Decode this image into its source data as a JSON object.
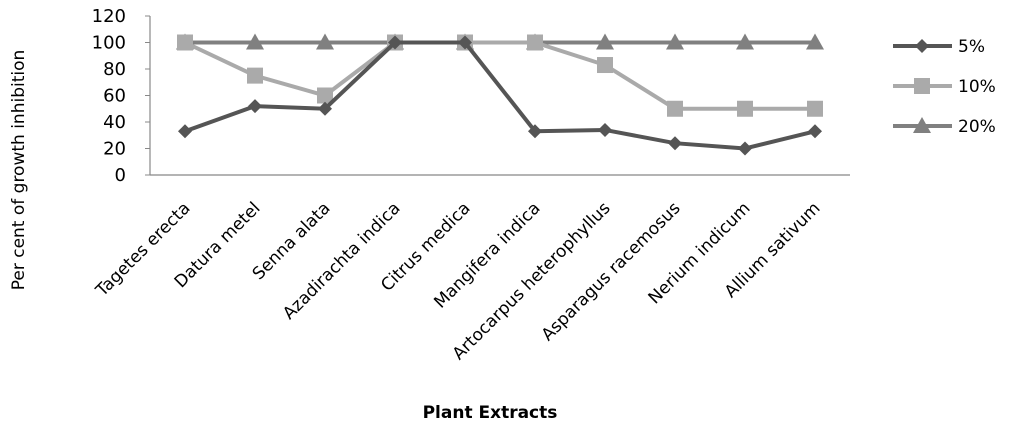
{
  "chart_data": {
    "type": "line",
    "xlabel": "Plant Extracts",
    "ylabel": "Per cent of growth inhibition",
    "ylim": [
      0,
      120
    ],
    "yticks": [
      0,
      20,
      40,
      60,
      80,
      100,
      120
    ],
    "grid": false,
    "legend_position": "right",
    "categories": [
      "Tagetes erecta",
      "Datura metel",
      "Senna alata",
      "Azadirachta indica",
      "Citrus medica",
      "Mangifera indica",
      "Artocarpus heterophyllus",
      "Asparagus racemosus",
      "Nerium indicum",
      "Allium sativum"
    ],
    "series": [
      {
        "name": "5%",
        "marker": "diamond",
        "color": "#555555",
        "values": [
          33,
          52,
          50,
          100,
          100,
          33,
          34,
          24,
          20,
          33
        ]
      },
      {
        "name": "10%",
        "marker": "square",
        "color": "#aaaaaa",
        "values": [
          100,
          75,
          60,
          100,
          100,
          100,
          83,
          50,
          50,
          50
        ]
      },
      {
        "name": "20%",
        "marker": "triangle",
        "color": "#808080",
        "values": [
          100,
          100,
          100,
          100,
          100,
          100,
          100,
          100,
          100,
          100
        ]
      }
    ]
  }
}
